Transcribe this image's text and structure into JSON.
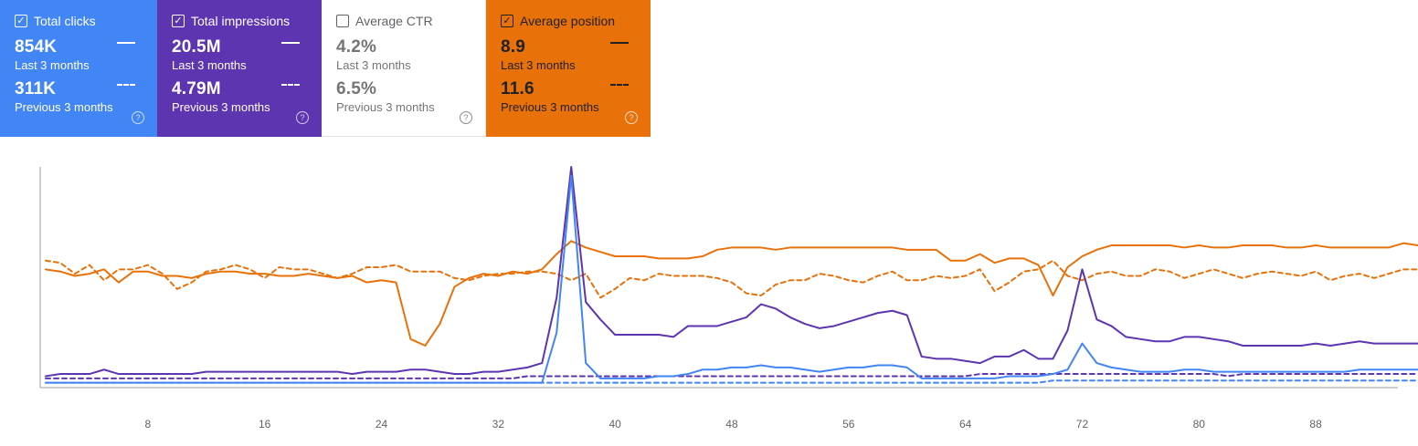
{
  "cards": [
    {
      "key": "clicks",
      "title": "Total clicks",
      "checked": true,
      "current_value": "854K",
      "current_period": "Last 3 months",
      "previous_value": "311K",
      "previous_period": "Previous 3 months",
      "color": "#4285f4",
      "help_icon": "question-circle-icon"
    },
    {
      "key": "impressions",
      "title": "Total impressions",
      "checked": true,
      "current_value": "20.5M",
      "current_period": "Last 3 months",
      "previous_value": "4.79M",
      "previous_period": "Previous 3 months",
      "color": "#5e35b1",
      "help_icon": "question-circle-icon"
    },
    {
      "key": "ctr",
      "title": "Average CTR",
      "checked": false,
      "current_value": "4.2%",
      "current_period": "Last 3 months",
      "previous_value": "6.5%",
      "previous_period": "Previous 3 months",
      "color": "#ffffff",
      "help_icon": "question-circle-icon"
    },
    {
      "key": "position",
      "title": "Average position",
      "checked": true,
      "current_value": "8.9",
      "current_period": "Last 3 months",
      "previous_value": "11.6",
      "previous_period": "Previous 3 months",
      "color": "#e8710a",
      "help_icon": "question-circle-icon"
    }
  ],
  "chart_data": {
    "type": "line",
    "x_ticks": [
      "8",
      "16",
      "24",
      "32",
      "40",
      "48",
      "56",
      "64",
      "72",
      "80",
      "88"
    ],
    "x_range": [
      1,
      93
    ],
    "y_range": [
      0,
      100
    ],
    "y_axis_labels": "none",
    "grid": false,
    "series": [
      {
        "key": "position_current",
        "style": "solid",
        "color": "#e8710a",
        "values": [
          53,
          52,
          50,
          51,
          53,
          47,
          52,
          52,
          50,
          50,
          49,
          51,
          52,
          52,
          51,
          51,
          50,
          50,
          51,
          50,
          49,
          50,
          47,
          48,
          47,
          21,
          18,
          28,
          45,
          49,
          51,
          50,
          52,
          51,
          53,
          60,
          66,
          63,
          61,
          59,
          59,
          59,
          58,
          58,
          58,
          59,
          62,
          63,
          63,
          63,
          62,
          63,
          63,
          63,
          63,
          63,
          63,
          63,
          63,
          62,
          62,
          62,
          57,
          57,
          60,
          56,
          58,
          58,
          55,
          41,
          54,
          59,
          62,
          64,
          64,
          64,
          64,
          64,
          63,
          64,
          63,
          63,
          64,
          64,
          64,
          63,
          63,
          64,
          63,
          63,
          63,
          63,
          63,
          65,
          64,
          65,
          63
        ]
      },
      {
        "key": "position_previous",
        "style": "dashed",
        "color": "#e8710a",
        "values": [
          57,
          56,
          51,
          55,
          48,
          53,
          53,
          55,
          51,
          44,
          47,
          52,
          53,
          55,
          53,
          49,
          54,
          53,
          53,
          51,
          49,
          51,
          54,
          54,
          55,
          52,
          52,
          52,
          49,
          48,
          50,
          51,
          51,
          52,
          52,
          51,
          48,
          51,
          40,
          44,
          49,
          48,
          51,
          50,
          50,
          50,
          49,
          47,
          42,
          41,
          46,
          48,
          48,
          51,
          50,
          48,
          47,
          50,
          52,
          48,
          48,
          50,
          49,
          50,
          53,
          43,
          47,
          52,
          53,
          57,
          50,
          48,
          51,
          52,
          50,
          50,
          53,
          52,
          49,
          51,
          53,
          51,
          49,
          51,
          52,
          51,
          50,
          52,
          48,
          50,
          51,
          49,
          51,
          53,
          53
        ]
      },
      {
        "key": "impressions_current",
        "style": "solid",
        "color": "#5e35b1",
        "values": [
          4,
          5,
          5,
          5,
          7,
          5,
          5,
          5,
          5,
          5,
          5,
          6,
          6,
          6,
          6,
          6,
          6,
          6,
          6,
          6,
          6,
          5,
          6,
          6,
          6,
          7,
          7,
          6,
          5,
          5,
          6,
          6,
          7,
          8,
          10,
          40,
          100,
          38,
          30,
          23,
          23,
          23,
          23,
          22,
          27,
          27,
          27,
          29,
          31,
          37,
          35,
          31,
          28,
          26,
          27,
          29,
          31,
          33,
          34,
          32,
          13,
          12,
          12,
          11,
          10,
          13,
          13,
          16,
          12,
          12,
          25,
          53,
          30,
          27,
          22,
          21,
          20,
          20,
          22,
          22,
          21,
          20,
          18,
          18,
          18,
          18,
          18,
          19,
          18,
          19,
          20,
          19,
          19,
          19,
          19
        ]
      },
      {
        "key": "impressions_previous",
        "style": "dashed",
        "color": "#5e35b1",
        "values": [
          3,
          3,
          3,
          3,
          3,
          3,
          3,
          3,
          3,
          3,
          3,
          3,
          3,
          3,
          3,
          3,
          3,
          3,
          3,
          3,
          3,
          3,
          3,
          3,
          3,
          3,
          3,
          3,
          3,
          3,
          3,
          3,
          3,
          4,
          4,
          4,
          4,
          4,
          4,
          4,
          4,
          4,
          4,
          4,
          4,
          4,
          4,
          4,
          4,
          4,
          4,
          4,
          4,
          4,
          4,
          4,
          4,
          4,
          4,
          4,
          4,
          4,
          4,
          4,
          5,
          5,
          5,
          5,
          5,
          5,
          5,
          5,
          5,
          5,
          5,
          5,
          5,
          5,
          5,
          5,
          5,
          4,
          5,
          5,
          5,
          5,
          5,
          5,
          5,
          5,
          5,
          5,
          5,
          5,
          5
        ]
      },
      {
        "key": "clicks_current",
        "style": "solid",
        "color": "#4285f4",
        "values": [
          1,
          1,
          1,
          1,
          1,
          1,
          1,
          1,
          1,
          1,
          1,
          1,
          1,
          1,
          1,
          1,
          1,
          1,
          1,
          1,
          1,
          1,
          1,
          1,
          1,
          1,
          1,
          1,
          1,
          1,
          1,
          1,
          1,
          1,
          1,
          24,
          96,
          10,
          3,
          3,
          3,
          3,
          4,
          4,
          5,
          7,
          7,
          8,
          8,
          9,
          8,
          8,
          7,
          6,
          7,
          8,
          8,
          9,
          9,
          8,
          3,
          3,
          3,
          3,
          3,
          3,
          4,
          4,
          4,
          5,
          7,
          19,
          10,
          8,
          7,
          6,
          6,
          6,
          7,
          7,
          6,
          6,
          6,
          6,
          6,
          6,
          6,
          6,
          6,
          6,
          7,
          7,
          7,
          7,
          7
        ]
      },
      {
        "key": "clicks_previous",
        "style": "dashed",
        "color": "#4285f4",
        "values": [
          1,
          1,
          1,
          1,
          1,
          1,
          1,
          1,
          1,
          1,
          1,
          1,
          1,
          1,
          1,
          1,
          1,
          1,
          1,
          1,
          1,
          1,
          1,
          1,
          1,
          1,
          1,
          1,
          1,
          1,
          1,
          1,
          1,
          1,
          1,
          1,
          1,
          1,
          1,
          1,
          1,
          1,
          1,
          1,
          1,
          1,
          1,
          1,
          1,
          1,
          1,
          1,
          1,
          1,
          1,
          1,
          1,
          1,
          1,
          1,
          1,
          1,
          1,
          1,
          1,
          1,
          1,
          1,
          1,
          2,
          2,
          2,
          2,
          2,
          2,
          2,
          2,
          2,
          2,
          2,
          2,
          2,
          2,
          2,
          2,
          2,
          2,
          2,
          2,
          2,
          2,
          2,
          2,
          2,
          2
        ]
      }
    ]
  }
}
